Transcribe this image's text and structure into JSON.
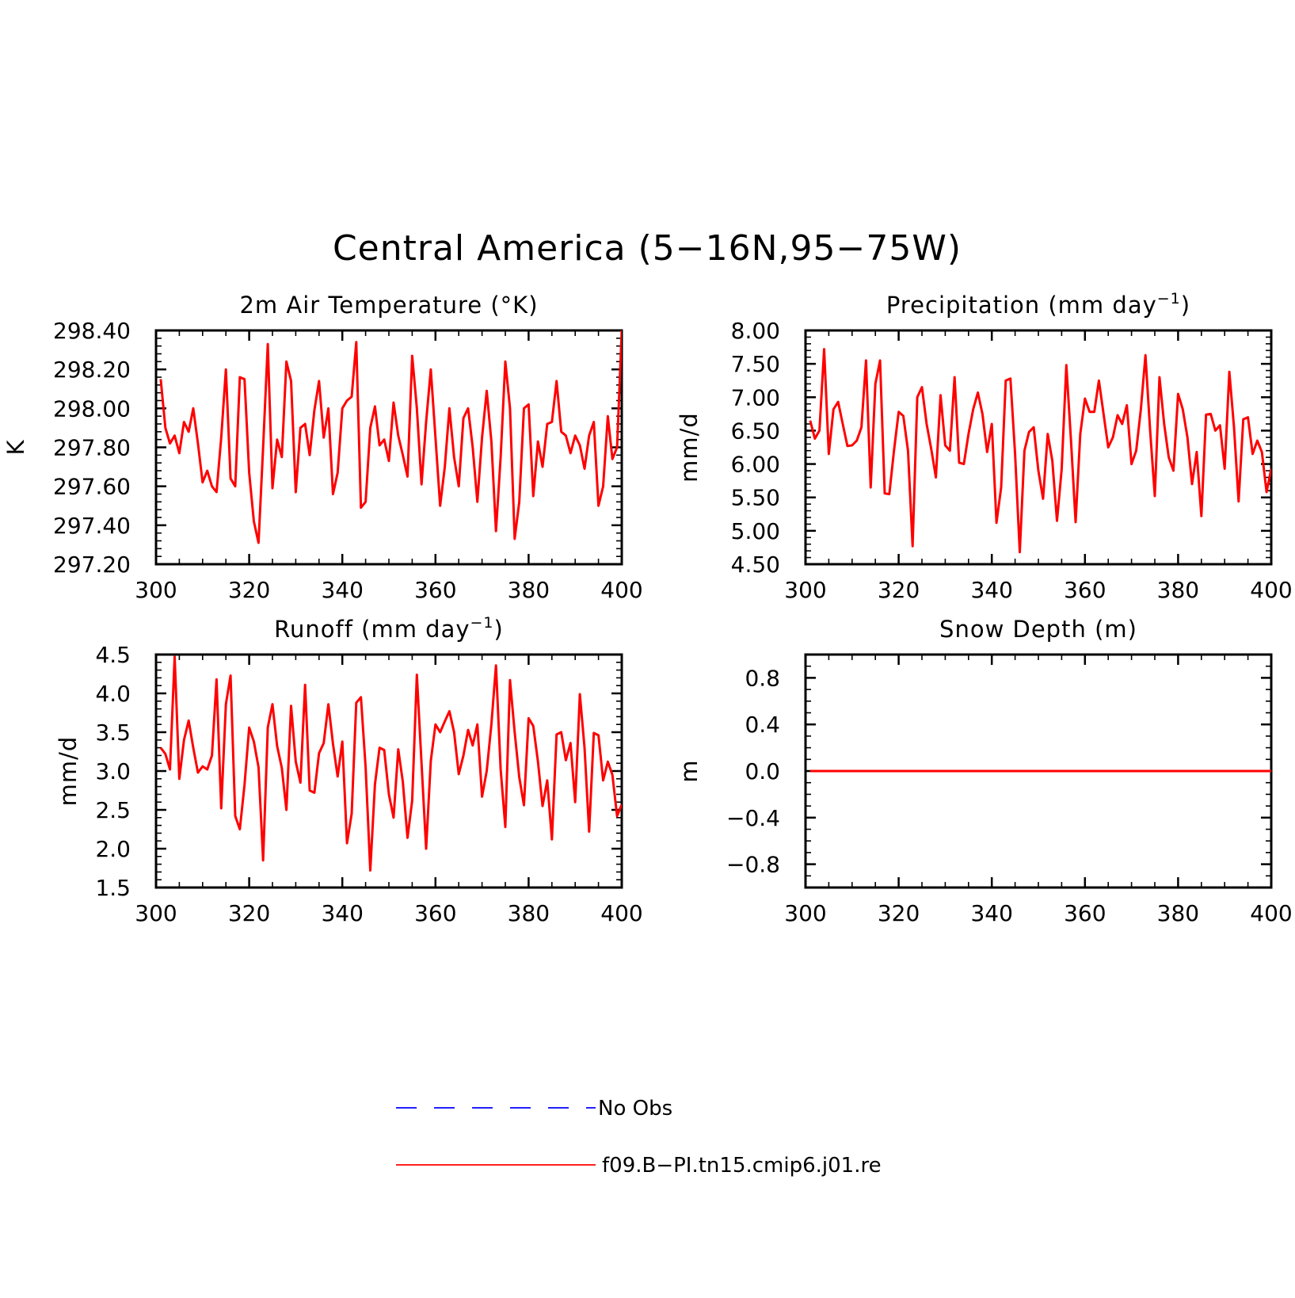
{
  "figure": {
    "title": "Central America (5−16N,95−75W)"
  },
  "colors": {
    "model_line": "#ff0000",
    "obs_line": "#0000ff",
    "axes": "#000000"
  },
  "legend": {
    "position": "bottom-center",
    "items": [
      {
        "label": "No Obs",
        "style": "dashed",
        "color": "#0000ff"
      },
      {
        "label": "f09.B−PI.tn15.cmip6.j01.re",
        "style": "solid",
        "color": "#ff0000"
      }
    ]
  },
  "chart_data": [
    {
      "type": "line",
      "title_main": "2m Air Temperature (°K)",
      "title_sup": "",
      "title_end": "",
      "ylabel": "K",
      "xlim": [
        300,
        400
      ],
      "ylim": [
        297.2,
        298.4
      ],
      "xticks": [
        "300",
        "320",
        "340",
        "360",
        "380",
        "400"
      ],
      "yticks": [
        "297.20",
        "297.40",
        "297.60",
        "297.80",
        "298.00",
        "298.20",
        "298.40"
      ],
      "grid": false,
      "series": [
        {
          "x_start": 301,
          "x_step": 1,
          "values": [
            298.15,
            297.9,
            297.82,
            297.86,
            297.77,
            297.93,
            297.88,
            298.0,
            297.82,
            297.62,
            297.68,
            297.6,
            297.57,
            297.85,
            298.2,
            297.64,
            297.6,
            298.16,
            298.15,
            297.67,
            297.42,
            297.31,
            297.8,
            298.33,
            297.59,
            297.84,
            297.75,
            298.24,
            298.14,
            297.57,
            297.9,
            297.92,
            297.76,
            297.99,
            298.14,
            297.85,
            298.0,
            297.56,
            297.67,
            298.0,
            298.04,
            298.06,
            298.34,
            297.49,
            297.52,
            297.9,
            298.01,
            297.81,
            297.84,
            297.73,
            298.03,
            297.86,
            297.76,
            297.65,
            298.27,
            298.0,
            297.61,
            297.93,
            298.2,
            297.85,
            297.5,
            297.7,
            298.0,
            297.75,
            297.6,
            297.95,
            298.0,
            297.8,
            297.52,
            297.85,
            298.09,
            297.83,
            297.37,
            297.75,
            298.24,
            298.0,
            297.33,
            297.52,
            298.0,
            298.02,
            297.55,
            297.83,
            297.7,
            297.92,
            297.93,
            298.14,
            297.88,
            297.86,
            297.77,
            297.86,
            297.81,
            297.69,
            297.86,
            297.93,
            297.5,
            297.6,
            297.96,
            297.74,
            297.8,
            298.4
          ]
        }
      ]
    },
    {
      "type": "line",
      "title_main": "Precipitation (mm day",
      "title_sup": "−1",
      "title_end": ")",
      "ylabel": "mm/d",
      "xlim": [
        300,
        400
      ],
      "ylim": [
        4.5,
        8.0
      ],
      "xticks": [
        "300",
        "320",
        "340",
        "360",
        "380",
        "400"
      ],
      "yticks": [
        "4.50",
        "5.00",
        "5.50",
        "6.00",
        "6.50",
        "7.00",
        "7.50",
        "8.00"
      ],
      "grid": false,
      "series": [
        {
          "x_start": 301,
          "x_step": 1,
          "values": [
            6.65,
            6.38,
            6.5,
            7.72,
            6.15,
            6.82,
            6.93,
            6.6,
            6.27,
            6.28,
            6.35,
            6.55,
            7.55,
            5.65,
            7.2,
            7.55,
            5.56,
            5.55,
            6.2,
            6.78,
            6.72,
            6.2,
            4.77,
            7.0,
            7.15,
            6.6,
            6.22,
            5.8,
            7.03,
            6.28,
            6.2,
            7.3,
            6.02,
            6.0,
            6.45,
            6.82,
            7.07,
            6.75,
            6.18,
            6.6,
            5.12,
            5.65,
            7.25,
            7.28,
            6.15,
            4.68,
            6.2,
            6.48,
            6.55,
            5.9,
            5.48,
            6.45,
            6.05,
            5.15,
            5.92,
            7.48,
            6.35,
            5.13,
            6.45,
            6.98,
            6.78,
            6.78,
            7.25,
            6.75,
            6.25,
            6.4,
            6.73,
            6.6,
            6.88,
            6.0,
            6.2,
            6.82,
            7.63,
            6.5,
            5.52,
            7.3,
            6.6,
            6.1,
            5.9,
            7.05,
            6.82,
            6.4,
            5.7,
            6.18,
            5.22,
            6.74,
            6.75,
            6.5,
            6.58,
            5.93,
            7.38,
            6.55,
            5.44,
            6.67,
            6.7,
            6.15,
            6.35,
            6.18,
            5.58,
            5.93
          ]
        }
      ]
    },
    {
      "type": "line",
      "title_main": "Runoff (mm day",
      "title_sup": "−1",
      "title_end": ")",
      "ylabel": "mm/d",
      "xlim": [
        300,
        400
      ],
      "ylim": [
        1.5,
        4.5
      ],
      "xticks": [
        "300",
        "320",
        "340",
        "360",
        "380",
        "400"
      ],
      "yticks": [
        "1.5",
        "2.0",
        "2.5",
        "3.0",
        "3.5",
        "4.0",
        "4.5"
      ],
      "grid": false,
      "series": [
        {
          "x_start": 301,
          "x_step": 1,
          "values": [
            3.3,
            3.22,
            3.02,
            4.47,
            2.9,
            3.4,
            3.65,
            3.3,
            2.98,
            3.06,
            3.02,
            3.2,
            4.18,
            2.52,
            3.86,
            4.23,
            2.42,
            2.25,
            2.82,
            3.56,
            3.38,
            3.05,
            1.85,
            3.56,
            3.86,
            3.32,
            3.04,
            2.5,
            3.84,
            3.12,
            2.85,
            4.11,
            2.75,
            2.72,
            3.23,
            3.36,
            3.86,
            3.35,
            2.93,
            3.38,
            2.07,
            2.45,
            3.88,
            3.95,
            3.05,
            1.72,
            2.83,
            3.3,
            3.27,
            2.7,
            2.4,
            3.28,
            2.86,
            2.14,
            2.62,
            4.24,
            3.1,
            2.0,
            3.13,
            3.6,
            3.5,
            3.64,
            3.77,
            3.5,
            2.96,
            3.2,
            3.53,
            3.33,
            3.6,
            2.67,
            3.0,
            3.6,
            4.36,
            3.02,
            2.28,
            4.17,
            3.5,
            2.92,
            2.56,
            3.68,
            3.58,
            3.12,
            2.55,
            2.88,
            2.12,
            3.47,
            3.5,
            3.14,
            3.36,
            2.6,
            3.99,
            3.3,
            2.22,
            3.49,
            3.46,
            2.88,
            3.12,
            2.95,
            2.42,
            2.57
          ]
        }
      ]
    },
    {
      "type": "line",
      "title_main": "Snow Depth (m)",
      "title_sup": "",
      "title_end": "",
      "ylabel": "m",
      "xlim": [
        300,
        400
      ],
      "ylim": [
        -1.0,
        1.0
      ],
      "xticks": [
        "300",
        "320",
        "340",
        "360",
        "380",
        "400"
      ],
      "yticks": [
        "−0.8",
        "−0.4",
        "0.0",
        "0.4",
        "0.8"
      ],
      "grid": false,
      "series": [
        {
          "x_start": 301,
          "x_step": 1,
          "values": [
            0,
            0,
            0,
            0,
            0,
            0,
            0,
            0,
            0,
            0,
            0,
            0,
            0,
            0,
            0,
            0,
            0,
            0,
            0,
            0,
            0,
            0,
            0,
            0,
            0,
            0,
            0,
            0,
            0,
            0,
            0,
            0,
            0,
            0,
            0,
            0,
            0,
            0,
            0,
            0,
            0,
            0,
            0,
            0,
            0,
            0,
            0,
            0,
            0,
            0,
            0,
            0,
            0,
            0,
            0,
            0,
            0,
            0,
            0,
            0,
            0,
            0,
            0,
            0,
            0,
            0,
            0,
            0,
            0,
            0,
            0,
            0,
            0,
            0,
            0,
            0,
            0,
            0,
            0,
            0,
            0,
            0,
            0,
            0,
            0,
            0,
            0,
            0,
            0,
            0,
            0,
            0,
            0,
            0,
            0,
            0,
            0,
            0,
            0,
            0
          ]
        }
      ]
    }
  ]
}
